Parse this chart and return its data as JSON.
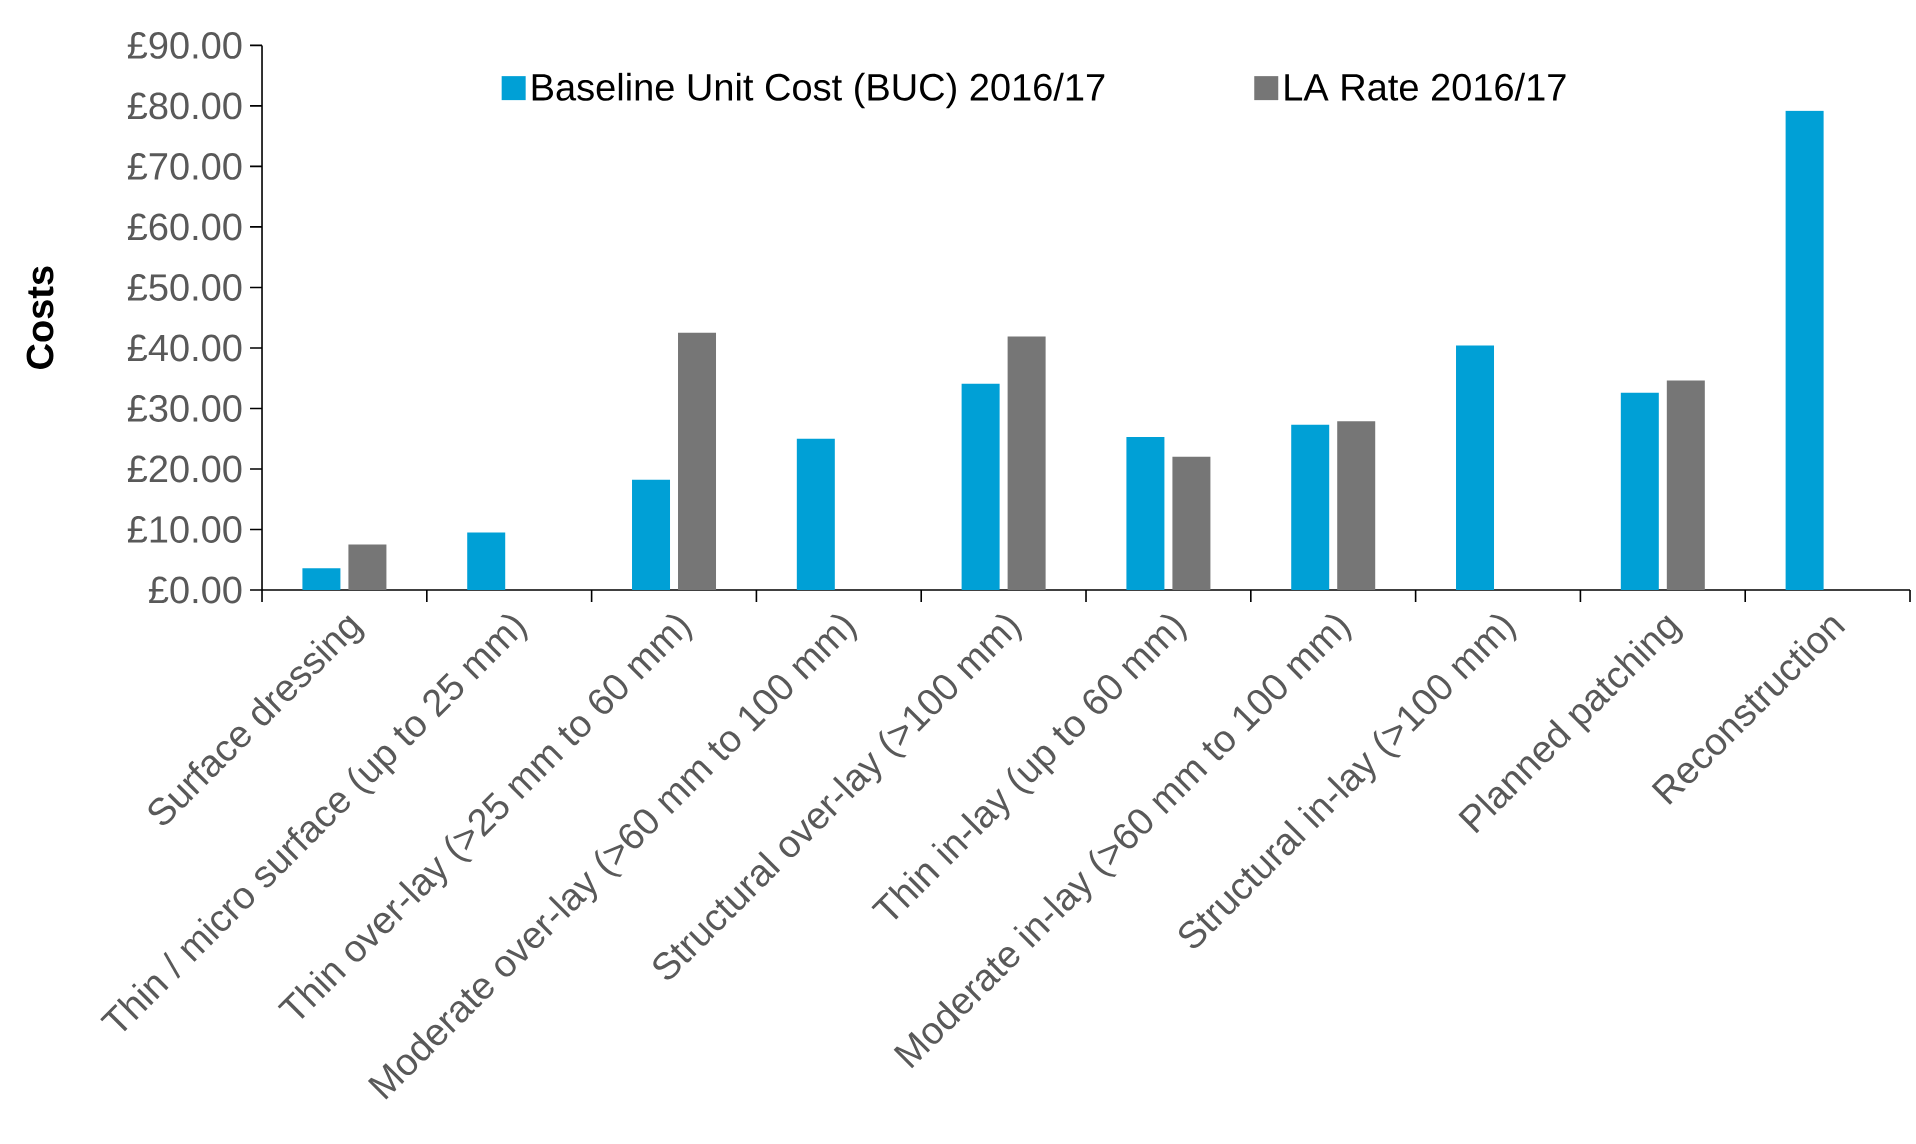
{
  "chart_data": {
    "type": "bar",
    "ylabel": "Costs",
    "categories": [
      "Surface dressing",
      "Thin / micro surface (up to 25 mm)",
      "Thin over-lay (>25 mm to 60 mm)",
      "Moderate over-lay (>60 mm to 100 mm)",
      "Structural over-lay (>100 mm)",
      "Thin in-lay (up to 60 mm)",
      "Moderate in-lay (>60 mm to 100 mm)",
      "Structural in-lay (>100 mm)",
      "Planned patching",
      "Reconstruction"
    ],
    "series": [
      {
        "name": "Baseline Unit Cost (BUC) 2016/17",
        "color": "#00a0d6",
        "values": [
          3.6,
          9.5,
          18.2,
          25.0,
          34.1,
          25.3,
          27.3,
          40.4,
          32.6,
          79.2
        ]
      },
      {
        "name": "LA Rate 2016/17",
        "color": "#767676",
        "values": [
          7.5,
          null,
          42.5,
          null,
          41.9,
          22.0,
          27.9,
          null,
          34.6,
          null
        ]
      }
    ],
    "ylim": [
      0,
      90
    ],
    "yticks": [
      {
        "value": 0,
        "label": "£0.00"
      },
      {
        "value": 10,
        "label": "£10.00"
      },
      {
        "value": 20,
        "label": "£20.00"
      },
      {
        "value": 30,
        "label": "£30.00"
      },
      {
        "value": 40,
        "label": "£40.00"
      },
      {
        "value": 50,
        "label": "£50.00"
      },
      {
        "value": 60,
        "label": "£60.00"
      },
      {
        "value": 70,
        "label": "£70.00"
      },
      {
        "value": 80,
        "label": "£80.00"
      },
      {
        "value": 90,
        "label": "£90.00"
      }
    ],
    "legend": "top",
    "grid": false
  }
}
